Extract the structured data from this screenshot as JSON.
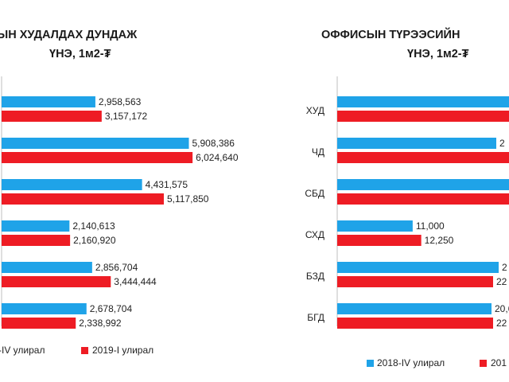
{
  "colors": {
    "series_a": "#1fa3e8",
    "series_b": "#ee1c24"
  },
  "chart_data": [
    {
      "type": "bar",
      "orientation": "horizontal",
      "title_lines": [
        "ЫН ХУДАЛДАХ ДУНДАЖ",
        "ҮНЭ, 1м2-₮"
      ],
      "categories": [
        "",
        "",
        "",
        "",
        "",
        ""
      ],
      "series": [
        {
          "name": "-IV улирал",
          "values": [
            2958563,
            5908386,
            4431575,
            2140613,
            2856704,
            2678704
          ],
          "labels": [
            "2,958,563",
            "5,908,386",
            "4,431,575",
            "2,140,613",
            "2,856,704",
            "2,678,704"
          ]
        },
        {
          "name": "2019-I улирал",
          "values": [
            3157172,
            6024640,
            5117850,
            2160920,
            3444444,
            2338992
          ],
          "labels": [
            "3,157,172",
            "6,024,640",
            "5,117,850",
            "2,160,920",
            "3,444,444",
            "2,338,992"
          ]
        }
      ],
      "xlim": [
        0,
        7000000
      ],
      "grid": false,
      "legend_position": "bottom"
    },
    {
      "type": "bar",
      "orientation": "horizontal",
      "title_lines": [
        "ОФФИСЫН  ТҮРЭЭСИЙН",
        "ҮНЭ, 1м2-₮"
      ],
      "categories": [
        "ХУД",
        "ЧД",
        "СБД",
        "СХД",
        "БЗД",
        "БГД"
      ],
      "series": [
        {
          "name": "2018-IV улирал",
          "values": [
            null,
            null,
            null,
            11000,
            null,
            null
          ],
          "labels": [
            "",
            "2",
            "",
            "11,000",
            "2",
            "20,6"
          ]
        },
        {
          "name": "201",
          "values": [
            null,
            null,
            null,
            12250,
            null,
            null
          ],
          "labels": [
            "",
            "",
            "",
            "12,250",
            "22",
            "22"
          ]
        }
      ],
      "xlim": [
        0,
        24000
      ],
      "grid": false,
      "legend_position": "bottom"
    }
  ]
}
